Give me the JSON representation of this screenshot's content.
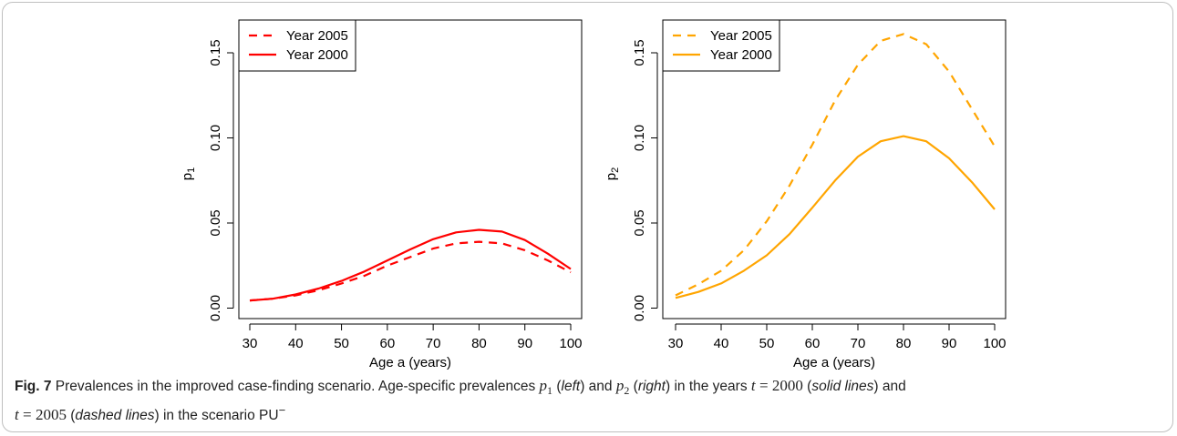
{
  "figure": {
    "label": "Fig. 7",
    "caption_title": "Prevalences in the improved case-finding scenario.",
    "caption_parts": {
      "t1": "Age-specific prevalences",
      "p1": "p",
      "p1_sub": "1",
      "left": "left",
      "and": "and",
      "p2": "p",
      "p2_sub": "2",
      "right": "right",
      "t2": "in the years",
      "t_var": "t",
      "eq": "=",
      "year_a": "2000",
      "solid": "solid lines",
      "and2": "and",
      "year_b": "2005",
      "dashed": "dashed lines",
      "t3": "in the scenario PU",
      "sup": "−"
    }
  },
  "chart_data": [
    {
      "type": "line",
      "panel": "left",
      "xlabel": "Age a (years)",
      "ylabel": "p",
      "ylabel_sub": "1",
      "xlim": [
        30,
        100
      ],
      "ylim": [
        0.0,
        0.165
      ],
      "xticks": [
        30,
        40,
        50,
        60,
        70,
        80,
        90,
        100
      ],
      "yticks": [
        "0.00",
        "0.05",
        "0.10",
        "0.15"
      ],
      "yticks_values": [
        0.0,
        0.05,
        0.1,
        0.15
      ],
      "legend_position": "top-left",
      "x": [
        30,
        35,
        40,
        45,
        50,
        55,
        60,
        65,
        70,
        75,
        80,
        85,
        90,
        95,
        100
      ],
      "series": [
        {
          "name": "Year 2005",
          "style": "dashed",
          "color": "#ff0000",
          "values": [
            0.0045,
            0.0055,
            0.0075,
            0.0105,
            0.0145,
            0.019,
            0.025,
            0.03,
            0.035,
            0.038,
            0.039,
            0.038,
            0.034,
            0.028,
            0.021
          ]
        },
        {
          "name": "Year 2000",
          "style": "solid",
          "color": "#ff0000",
          "values": [
            0.0045,
            0.0055,
            0.008,
            0.0115,
            0.016,
            0.0215,
            0.028,
            0.0345,
            0.0405,
            0.0445,
            0.046,
            0.045,
            0.04,
            0.032,
            0.023
          ]
        }
      ]
    },
    {
      "type": "line",
      "panel": "right",
      "xlabel": "Age a (years)",
      "ylabel": "p",
      "ylabel_sub": "2",
      "xlim": [
        30,
        100
      ],
      "ylim": [
        0.0,
        0.165
      ],
      "xticks": [
        30,
        40,
        50,
        60,
        70,
        80,
        90,
        100
      ],
      "yticks": [
        "0.00",
        "0.05",
        "0.10",
        "0.15"
      ],
      "yticks_values": [
        0.0,
        0.05,
        0.1,
        0.15
      ],
      "legend_position": "top-left",
      "x": [
        30,
        35,
        40,
        45,
        50,
        55,
        60,
        65,
        70,
        75,
        80,
        85,
        90,
        95,
        100
      ],
      "series": [
        {
          "name": "Year 2005",
          "style": "dashed",
          "color": "#ffa500",
          "values": [
            0.0075,
            0.014,
            0.022,
            0.034,
            0.051,
            0.072,
            0.096,
            0.122,
            0.143,
            0.157,
            0.161,
            0.155,
            0.139,
            0.117,
            0.095
          ]
        },
        {
          "name": "Year 2000",
          "style": "solid",
          "color": "#ffa500",
          "values": [
            0.006,
            0.0095,
            0.0145,
            0.022,
            0.031,
            0.0435,
            0.059,
            0.075,
            0.089,
            0.098,
            0.101,
            0.098,
            0.088,
            0.074,
            0.058
          ]
        }
      ]
    }
  ]
}
